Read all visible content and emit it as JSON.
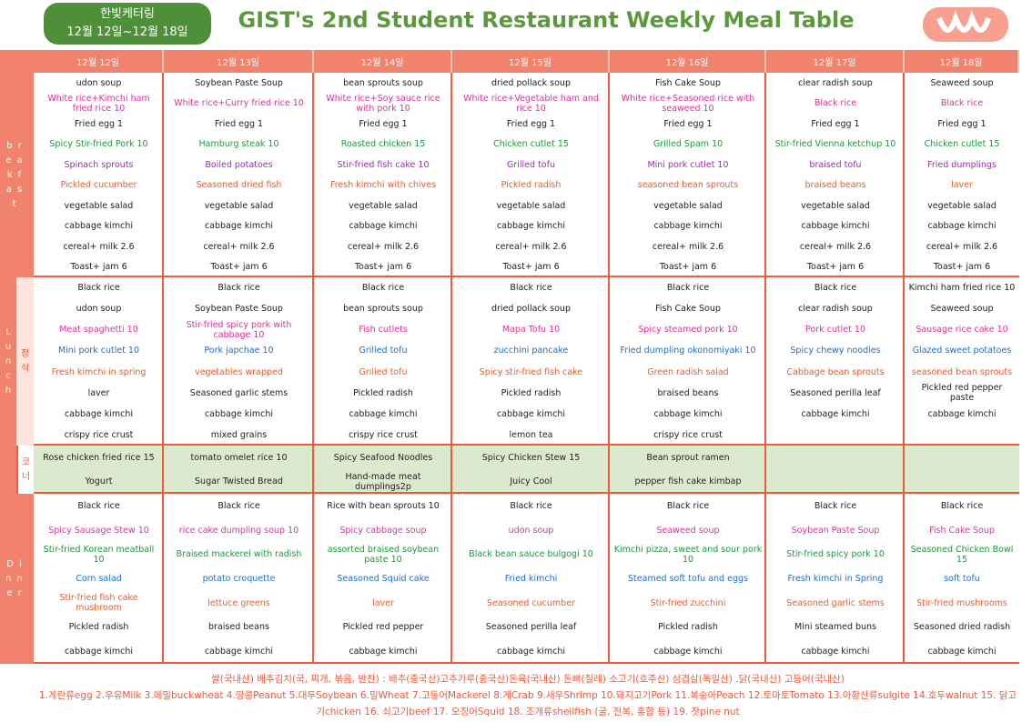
{
  "header": {
    "badge": [
      "한빛케터링",
      "12월 12일~12월 18일"
    ],
    "title": "GIST's 2nd Student Restaurant Weekly Meal Table"
  },
  "days": [
    "12월 12일",
    "12월 13일",
    "12월 14일",
    "12월 15일",
    "12월 16일",
    "12월 17일",
    "12월 18일"
  ],
  "sections": [
    {
      "label": "breakfast",
      "colors": [
        "#222",
        "#e0309a",
        "#222",
        "#1a9a3a",
        "#9a30b0",
        "#f05a28",
        "#222",
        "#222",
        "#222",
        "#222"
      ],
      "columns": [
        [
          "udon soup",
          "White rice+Kimchi ham fried rice 10",
          "Fried egg 1",
          "Spicy Stir-fried Pork 10",
          "Spinach sprouts",
          "Pickled cucumber",
          "vegetable salad",
          "cabbage kimchi",
          "cereal+ milk 2.6",
          "Toast+ jam 6"
        ],
        [
          "Soybean Paste Soup",
          "White rice+Curry fried rice 10",
          "Fried egg 1",
          "Hamburg steak 10",
          "Boiled potatoes",
          "Seasoned dried fish",
          "vegetable salad",
          "cabbage kimchi",
          "cereal+ milk 2.6",
          "Toast+ jam 6"
        ],
        [
          "bean sprouts soup",
          "White rice+Soy sauce rice with pork 10",
          "Fried egg 1",
          "Roasted chicken 15",
          "Stir-fried fish cake 10",
          "Fresh kimchi with chives",
          "vegetable salad",
          "cabbage kimchi",
          "cereal+ milk 2.6",
          "Toast+ jam 6"
        ],
        [
          "dried pollack soup",
          "White rice+Vegetable ham and rice 10",
          "Fried egg 1",
          "Chicken cutlet 15",
          "Grilled tofu",
          "Pickled radish",
          "vegetable salad",
          "cabbage kimchi",
          "cereal+ milk 2.6",
          "Toast+ jam 6"
        ],
        [
          "Fish Cake Soup",
          "White rice+Seasoned rice with seaweed 10",
          "Fried egg 1",
          "Grilled Spam 10",
          "Mini pork cutlet 10",
          "seasoned bean sprouts",
          "vegetable salad",
          "cabbage kimchi",
          "cereal+ milk 2.6",
          "Toast+ jam 6"
        ],
        [
          "clear radish soup",
          "Black rice",
          "Fried egg 1",
          "Stir-fried Vienna ketchup 10",
          "braised tofu",
          "braised beans",
          "vegetable salad",
          "cabbage kimchi",
          "cereal+ milk 2.6",
          "Toast+ jam 6"
        ],
        [
          "Seaweed soup",
          "Black rice",
          "Fried egg 1",
          "Chicken cutlet 15",
          "Fried dumplings",
          "laver",
          "vegetable salad",
          "cabbage kimchi",
          "cereal+ milk 2.6",
          "Toast+ jam 6"
        ]
      ]
    },
    {
      "label": "Lunch",
      "sublabel": "정식",
      "colors": [
        "#222",
        "#222",
        "#e0309a",
        "#1a6fd0",
        "#f05a28",
        "#222",
        "#222",
        "#222"
      ],
      "columns": [
        [
          "Black rice",
          "udon soup",
          "Meat spaghetti 10",
          "Mini pork cutlet 10",
          "Fresh kimchi in spring",
          "laver",
          "cabbage kimchi",
          "crispy rice crust"
        ],
        [
          "Black rice",
          "Soybean Paste Soup",
          "Stir-fried spicy pork with cabbage 10",
          "Pork japchae 10",
          "vegetables wrapped",
          "Seasoned garlic stems",
          "cabbage kimchi",
          "mixed grains"
        ],
        [
          "Black rice",
          "bean sprouts soup",
          "Fish cutlets",
          "Grilled tofu",
          "Grilled tofu",
          "Pickled radish",
          "cabbage kimchi",
          "crispy rice crust"
        ],
        [
          "Black rice",
          "dried pollack soup",
          "Mapa Tofu 10",
          "zucchini pancake",
          "Spicy stir-fried fish cake",
          "Pickled radish",
          "cabbage kimchi",
          "lemon tea"
        ],
        [
          "Black rice",
          "Fish Cake Soup",
          "Spicy steamed pork 10",
          "Fried dumpling okonomiyaki 10",
          "Green radish salad",
          "braised beans",
          "cabbage kimchi",
          "crispy rice crust"
        ],
        [
          "Black rice",
          "clear radish soup",
          "Pork cutlet 10",
          "Spicy chewy noodles",
          "Cabbage bean sprouts",
          "Seasoned perilla leaf",
          "cabbage kimchi"
        ],
        [
          "Kimchi ham fried rice 10",
          "Seaweed soup",
          "Sausage rice cake 10",
          "Glazed sweet potatoes",
          "seasoned bean sprouts",
          "Pickled red pepper paste",
          "cabbage kimchi"
        ]
      ]
    },
    {
      "label": "코너",
      "colors": [
        "#222",
        "#222"
      ],
      "columns": [
        [
          "Rose chicken fried rice 15",
          "Yogurt"
        ],
        [
          "tomato omelet rice 10",
          "Sugar Twisted Bread"
        ],
        [
          "Spicy Seafood Noodles",
          "Hand-made meat dumplings2p"
        ],
        [
          "Spicy Chicken Stew 15",
          "Juicy Cool"
        ],
        [
          "Bean sprout ramen",
          "pepper fish cake kimbap"
        ]
      ]
    },
    {
      "label": "Dinner",
      "colors": [
        "#222",
        "#e0309a",
        "#1a9a3a",
        "#1a6fd0",
        "#f05a28",
        "#222",
        "#222"
      ],
      "columns": [
        [
          "Black rice",
          "Spicy Sausage Stew 10",
          "Stir-fried Korean meatball 10",
          "Corn salad",
          "Stir-fried fish cake mushroom",
          "Pickled radish",
          "cabbage kimchi"
        ],
        [
          "Black rice",
          "rice cake dumpling soup 10",
          "Braised mackerel with radish",
          "potato croquette",
          "lettuce greens",
          "braised beans",
          "cabbage kimchi"
        ],
        [
          "Rice with bean sprouts 10",
          "Spicy cabbage soup",
          "assorted braised soybean paste 10",
          "Seasoned Squid cake",
          "laver",
          "Pickled red pepper",
          "cabbage kimchi"
        ],
        [
          "Black rice",
          "udon soup",
          "Black bean sauce bulgogi 10",
          "Fried kimchi",
          "Seasoned cucumber",
          "Seasoned perilla leaf",
          "cabbage kimchi"
        ],
        [
          "Black rice",
          "Seaweed soup",
          "Kimchi pizza, sweet and sour pork 10",
          "Steamed soft tofu and eggs",
          "Stir-fried zucchini",
          "Pickled radish",
          "cabbage kimchi"
        ],
        [
          "Black rice",
          "Soybean Paste Soup",
          "Stir-fried spicy pork 10",
          "Fresh kimchi in Spring",
          "Seasoned garlic stems",
          "Mini steamed buns",
          "cabbage kimchi"
        ],
        [
          "Black rice",
          "Fish Cake Soup",
          "Seasoned Chicken Bowl 15",
          "soft tofu",
          "Stir-fried mushrooms",
          "Seasoned dried radish",
          "cabbage kimchi"
        ]
      ]
    }
  ],
  "footer": {
    "origin": "쌀(국내산) 배추김치(국, 찌개, 볶음, 반찬) : 배추(중국산)고추가루(중국산)돈육(국내산) 돈뼈(칠레) 소고기(호주산) 삼겹살(독일산) .닭(국내산) 고등어(국내산)",
    "allergens": "1.계란류egg 2.우유Milk 3.메밀buckwheat 4.땅콩Peanut 5.대두Soybean 6.밀Wheat 7.고등어Mackerel 8.게Crab 9.새우Shrimp 10.돼지고기Pork 11.복숭아Peach 12.토마토Tomato 13.아황산류sulgite 14.호두walnut 15. 닭고기chicken 16. 쇠고기beef 17. 오징어Squid 18. 조개류shellfish (굴, 전복, 홍합 등) 19. 잣pine nut"
  }
}
